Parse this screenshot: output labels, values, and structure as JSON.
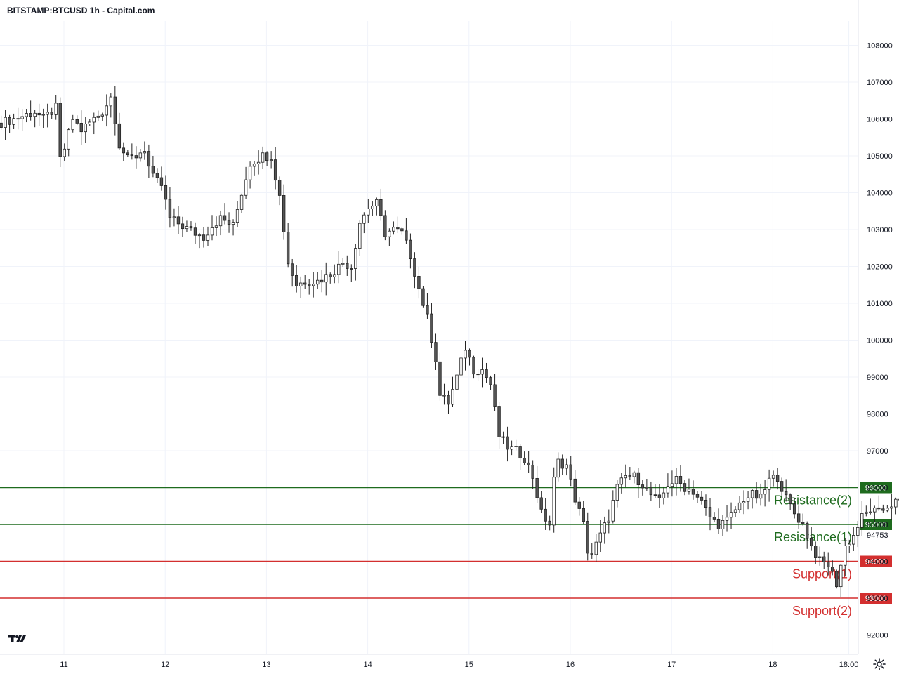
{
  "title": "BITSTAMP:BTCUSD 1h - Capital.com",
  "current_price_label": "94753",
  "colors": {
    "resistance": "#1e6b1e",
    "support": "#d32f2f",
    "candle_up": "#ffffff",
    "candle_down": "#555555",
    "wick": "#222222",
    "grid": "#f0f3fa",
    "axis_text": "#131722"
  },
  "icons": {
    "logo": "tradingview-logo-icon",
    "settings": "gear-icon"
  },
  "chart_data": {
    "type": "candlestick",
    "title": "BITSTAMP:BTCUSD 1h - Capital.com",
    "ylim": [
      91500,
      108800
    ],
    "y_ticks": [
      "92000",
      "93000",
      "94000",
      "95000",
      "96000",
      "97000",
      "98000",
      "99000",
      "100000",
      "101000",
      "102000",
      "103000",
      "104000",
      "105000",
      "106000",
      "107000",
      "108000"
    ],
    "x_ticks": [
      {
        "label": "11",
        "day": 11
      },
      {
        "label": "12",
        "day": 12
      },
      {
        "label": "13",
        "day": 13
      },
      {
        "label": "14",
        "day": 14
      },
      {
        "label": "15",
        "day": 15
      },
      {
        "label": "16",
        "day": 16
      },
      {
        "label": "17",
        "day": 17
      },
      {
        "label": "18",
        "day": 18
      },
      {
        "label": "18:00",
        "day": 18.75
      }
    ],
    "xlim_days": [
      10.38,
      18.78
    ],
    "levels": [
      {
        "name": "Resistance(2)",
        "value": 96000,
        "kind": "resistance",
        "label": "96000"
      },
      {
        "name": "Resistance(1)",
        "value": 95000,
        "kind": "resistance",
        "label": "95000"
      },
      {
        "name": "Support(1)",
        "value": 94000,
        "kind": "support",
        "label": "94000"
      },
      {
        "name": "Support(2)",
        "value": 93000,
        "kind": "support",
        "label": "93000"
      }
    ],
    "current_price": 94753,
    "start_day": 10.38,
    "close_anchors": [
      [
        0,
        105900
      ],
      [
        3,
        106000
      ],
      [
        8,
        106200
      ],
      [
        10,
        106000
      ],
      [
        13,
        106300
      ],
      [
        14,
        104900
      ],
      [
        15,
        105200
      ],
      [
        17,
        106000
      ],
      [
        19,
        105700
      ],
      [
        22,
        106000
      ],
      [
        24,
        106200
      ],
      [
        26,
        106600
      ],
      [
        27,
        106000
      ],
      [
        28,
        105300
      ],
      [
        30,
        104900
      ],
      [
        32,
        105000
      ],
      [
        34,
        105200
      ],
      [
        35,
        104700
      ],
      [
        36,
        104400
      ],
      [
        38,
        104200
      ],
      [
        40,
        103300
      ],
      [
        43,
        103100
      ],
      [
        46,
        102900
      ],
      [
        48,
        102800
      ],
      [
        50,
        103100
      ],
      [
        52,
        103300
      ],
      [
        55,
        103100
      ],
      [
        57,
        104000
      ],
      [
        59,
        104800
      ],
      [
        62,
        105000
      ],
      [
        64,
        105000
      ],
      [
        66,
        103900
      ],
      [
        68,
        102100
      ],
      [
        70,
        101500
      ],
      [
        72,
        101600
      ],
      [
        75,
        101600
      ],
      [
        78,
        101800
      ],
      [
        81,
        102100
      ],
      [
        83,
        102000
      ],
      [
        85,
        103200
      ],
      [
        87,
        103600
      ],
      [
        89,
        103700
      ],
      [
        91,
        102900
      ],
      [
        93,
        103000
      ],
      [
        95,
        102900
      ],
      [
        97,
        102300
      ],
      [
        99,
        101400
      ],
      [
        101,
        100600
      ],
      [
        103,
        99500
      ],
      [
        104,
        98500
      ],
      [
        106,
        98300
      ],
      [
        108,
        99000
      ],
      [
        110,
        99800
      ],
      [
        112,
        99200
      ],
      [
        114,
        99200
      ],
      [
        116,
        98800
      ],
      [
        118,
        97400
      ],
      [
        120,
        97100
      ],
      [
        122,
        97000
      ],
      [
        124,
        96800
      ],
      [
        126,
        96300
      ],
      [
        128,
        95300
      ],
      [
        130,
        95000
      ],
      [
        131,
        96200
      ],
      [
        132,
        96700
      ],
      [
        134,
        96600
      ],
      [
        136,
        95700
      ],
      [
        138,
        95000
      ],
      [
        139,
        94300
      ],
      [
        140,
        94200
      ],
      [
        142,
        94700
      ],
      [
        144,
        95200
      ],
      [
        146,
        96000
      ],
      [
        148,
        96300
      ],
      [
        150,
        96300
      ],
      [
        152,
        96100
      ],
      [
        154,
        95800
      ],
      [
        156,
        95600
      ],
      [
        158,
        96100
      ],
      [
        160,
        96200
      ],
      [
        162,
        96000
      ],
      [
        164,
        95900
      ],
      [
        166,
        95600
      ],
      [
        168,
        95200
      ],
      [
        170,
        95000
      ],
      [
        172,
        95100
      ],
      [
        174,
        95400
      ],
      [
        176,
        95700
      ],
      [
        178,
        95800
      ],
      [
        180,
        95700
      ],
      [
        182,
        96200
      ],
      [
        184,
        96300
      ],
      [
        186,
        95700
      ],
      [
        188,
        95300
      ],
      [
        190,
        95000
      ],
      [
        192,
        94400
      ],
      [
        194,
        94000
      ],
      [
        196,
        93900
      ],
      [
        198,
        93400
      ],
      [
        200,
        94400
      ],
      [
        202,
        94700
      ],
      [
        204,
        95200
      ],
      [
        206,
        95400
      ],
      [
        208,
        95300
      ],
      [
        210,
        95500
      ],
      [
        212,
        95600
      ],
      [
        214,
        95600
      ],
      [
        216,
        95300
      ],
      [
        218,
        94000
      ],
      [
        219,
        94700
      ]
    ]
  }
}
